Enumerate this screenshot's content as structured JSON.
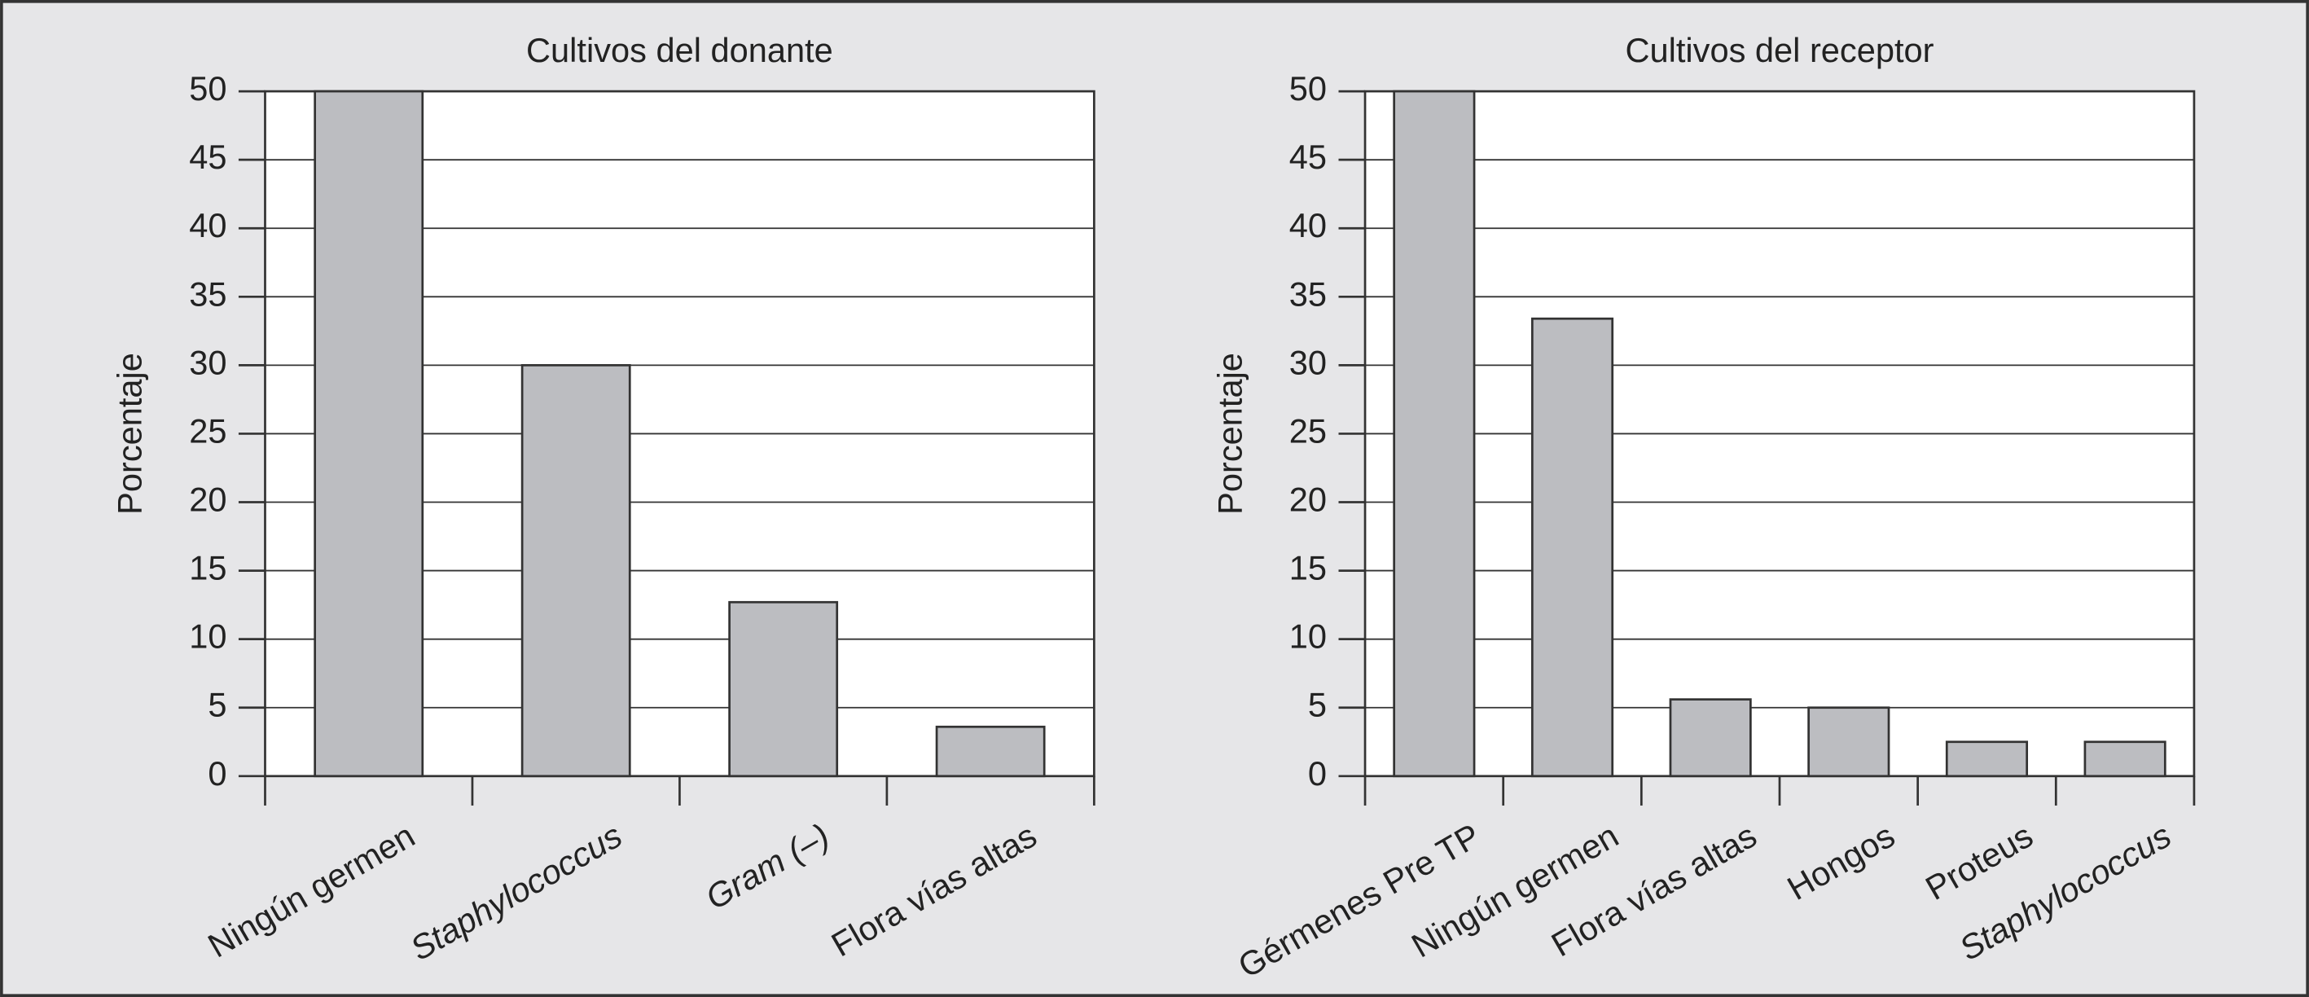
{
  "chart_data": [
    {
      "type": "bar",
      "title": "Cultivos del donante",
      "y_label": "Porcentaje",
      "categories": [
        "Ningún germen",
        "Staphylococcus",
        "Gram (–)",
        "Flora vías altas"
      ],
      "category_style": [
        "normal",
        "italic",
        "italic",
        "normal"
      ],
      "values": [
        50,
        30,
        12.7,
        3.6
      ],
      "color": "#bcbdc1",
      "ylim": [
        0,
        50
      ],
      "yticks": [
        0,
        5,
        10,
        15,
        20,
        25,
        30,
        35,
        40,
        45,
        50
      ],
      "grid": true
    },
    {
      "type": "bar",
      "title": "Cultivos del receptor",
      "y_label": "Porcentaje",
      "categories": [
        "Gérmenes Pre TP",
        "Ningún germen",
        "Flora vías altas",
        "Hongos",
        "Proteus",
        "Staphylococcus"
      ],
      "category_style": [
        "normal",
        "normal",
        "normal",
        "normal",
        "normal",
        "italic"
      ],
      "values": [
        50,
        33.4,
        5.6,
        5,
        2.5,
        2.5
      ],
      "color": "#bcbdc1",
      "ylim": [
        0,
        50
      ],
      "yticks": [
        0,
        5,
        10,
        15,
        20,
        25,
        30,
        35,
        40,
        45,
        50
      ],
      "grid": true
    }
  ]
}
